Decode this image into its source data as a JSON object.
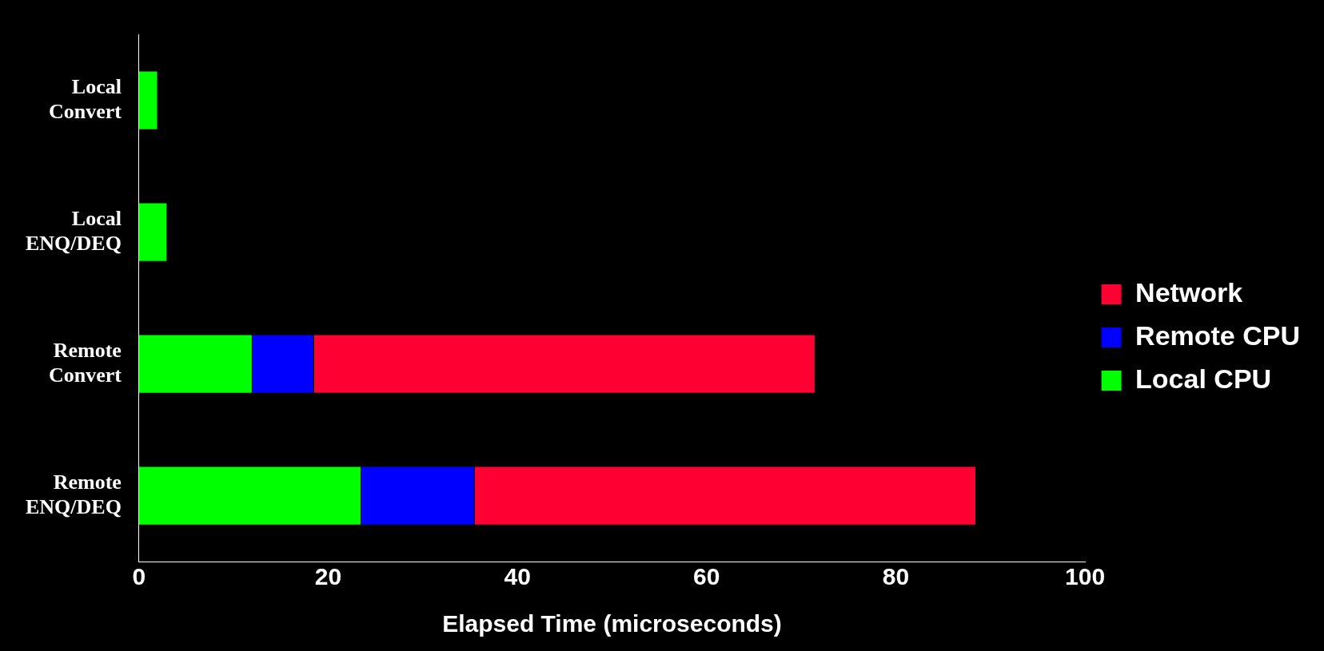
{
  "chart_data": {
    "type": "bar",
    "orientation": "horizontal",
    "stacked": true,
    "xlabel": "Elapsed Time (microseconds)",
    "categories": [
      "Local Convert",
      "Local ENQ/DEQ",
      "Remote Convert",
      "Remote ENQ/DEQ"
    ],
    "series": [
      {
        "name": "Local CPU",
        "color": "#00ff00",
        "values": [
          2,
          3,
          12,
          23.5
        ]
      },
      {
        "name": "Remote CPU",
        "color": "#0000ff",
        "values": [
          null,
          null,
          6.5,
          12
        ]
      },
      {
        "name": "Network",
        "color": "#ff0033",
        "values": [
          null,
          null,
          53,
          53
        ]
      }
    ],
    "xlim": [
      0,
      100
    ],
    "xticks": [
      0,
      20,
      40,
      60,
      80,
      100
    ],
    "grid": false,
    "legend": "right"
  }
}
